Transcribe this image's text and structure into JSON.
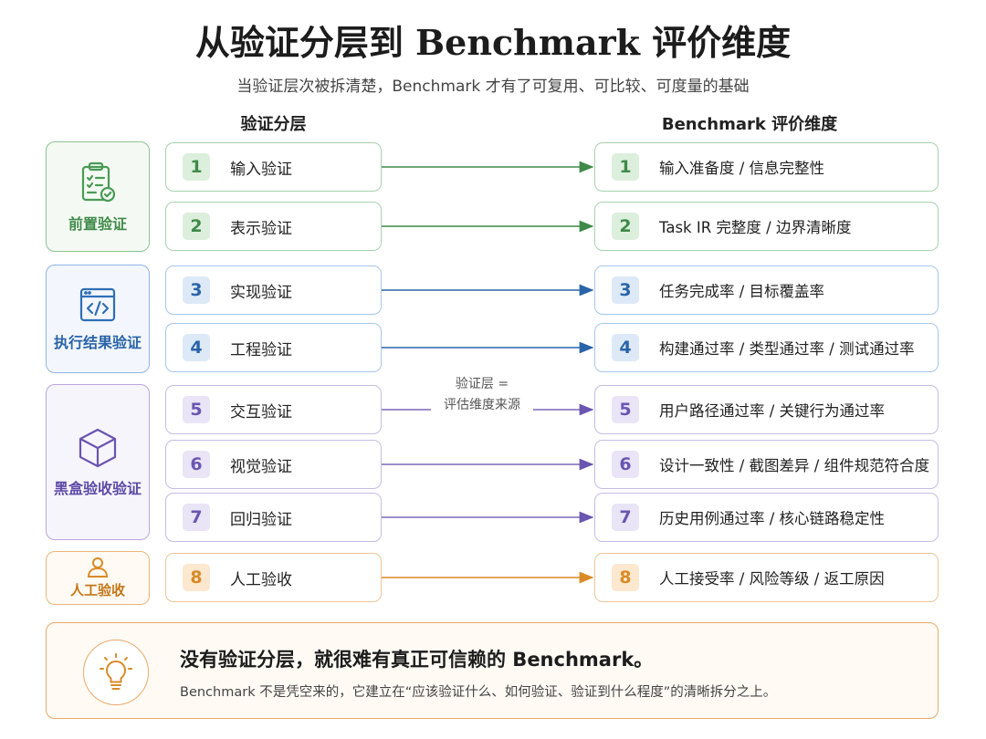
{
  "title": "从验证分层到 Benchmark 评价维度",
  "subtitle": "当验证层次被拆清楚，Benchmark 才有了可复用、可比较、可度量的基础",
  "left_header": "验证分层",
  "right_header": "Benchmark 评价维度",
  "mid_note": [
    "验证层 =",
    "评估维度来源"
  ],
  "groups": [
    {
      "label": "前置验证",
      "icon": "clipboard-check-icon",
      "color": "#4a9a55",
      "bg": "#f4faf3"
    },
    {
      "label": "执行结果验证",
      "icon": "code-window-icon",
      "color": "#2f6fb6",
      "bg": "#f3f7fd"
    },
    {
      "label": "黑盒验收验证",
      "icon": "cube-icon",
      "color": "#6a55b0",
      "bg": "#f7f5fc"
    },
    {
      "label": "人工验收",
      "icon": "person-icon",
      "color": "#d98a26",
      "bg": "#fffaf3"
    }
  ],
  "rows": [
    {
      "num": "1",
      "left": "输入验证",
      "right": "输入准备度 / 信息完整性"
    },
    {
      "num": "2",
      "left": "表示验证",
      "right": "Task IR 完整度 / 边界清晰度"
    },
    {
      "num": "3",
      "left": "实现验证",
      "right": "任务完成率 / 目标覆盖率"
    },
    {
      "num": "4",
      "left": "工程验证",
      "right": "构建通过率 / 类型通过率 / 测试通过率"
    },
    {
      "num": "5",
      "left": "交互验证",
      "right": "用户路径通过率 / 关键行为通过率"
    },
    {
      "num": "6",
      "left": "视觉验证",
      "right": "设计一致性 / 截图差异 / 组件规范符合度"
    },
    {
      "num": "7",
      "left": "回归验证",
      "right": "历史用例通过率 / 核心链路稳定性"
    },
    {
      "num": "8",
      "left": "人工验收",
      "right": "人工接受率 / 风险等级 / 返工原因"
    }
  ],
  "footer": {
    "icon": "lightbulb-icon",
    "main": "没有验证分层，就很难有真正可信赖的 Benchmark。",
    "sub": "Benchmark 不是凭空来的，它建立在“应该验证什么、如何验证、验证到什么程度”的清晰拆分之上。"
  }
}
